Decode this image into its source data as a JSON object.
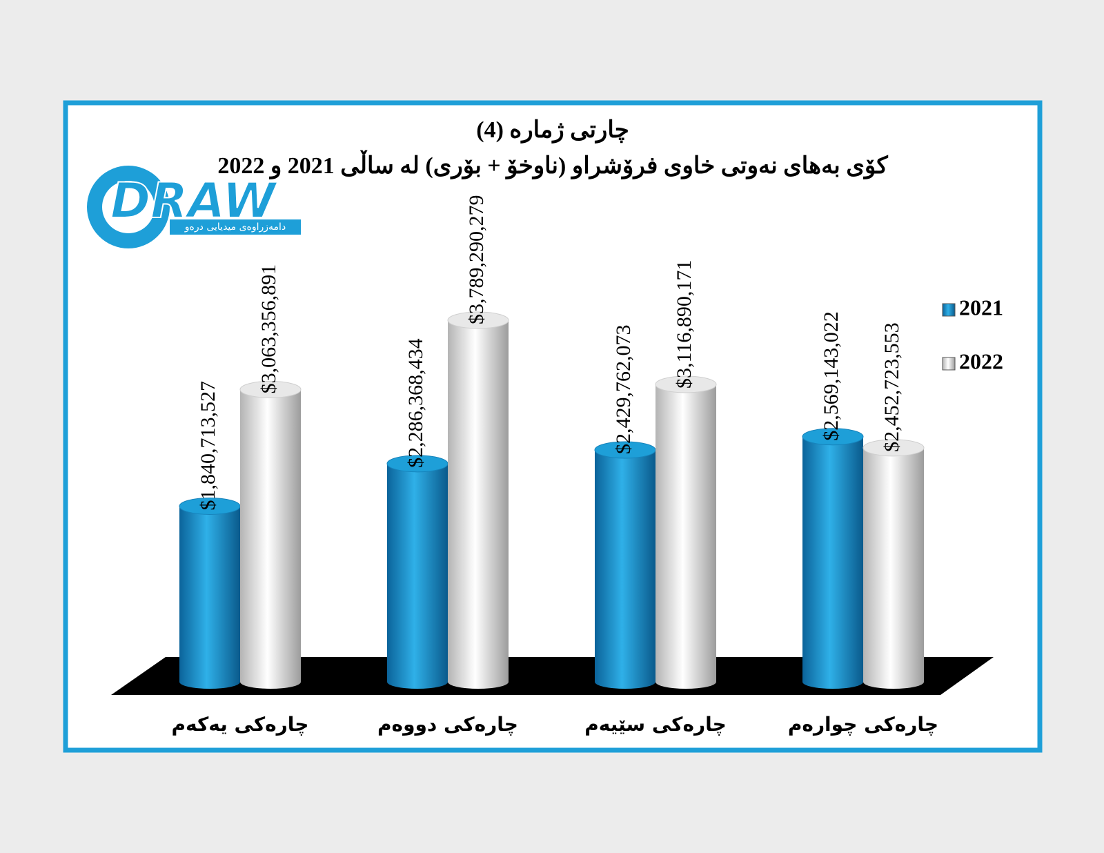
{
  "chart_data": {
    "type": "bar",
    "title": "چارتی ژمارە (4)",
    "subtitle": "کۆی بەهای نەوتی خاوی فرۆشراو (ناوخۆ + بۆری) لە ساڵی 2021 و 2022",
    "logo_text": "DRAW",
    "logo_tagline": "دامەزراوەی میدیایی درەو",
    "categories": [
      "چارەکی یەکەم",
      "چارەکی دووەم",
      "چارەکی سێیەم",
      "چارەکی چوارەم"
    ],
    "series": [
      {
        "name": "2021",
        "color": "#1e9fd8",
        "values": [
          1840713527,
          2286368434,
          2429762073,
          2569143022
        ],
        "value_labels": [
          "$1,840,713,527",
          "$2,286,368,434",
          "$2,429,762,073",
          "$2,569,143,022"
        ]
      },
      {
        "name": "2022",
        "color": "#e8e8e8",
        "values": [
          3063356891,
          3789290279,
          3116890171,
          2452723553
        ],
        "value_labels": [
          "$3,063,356,891",
          "$3,789,290,279",
          "$3,116,890,171",
          "$2,452,723,553"
        ]
      }
    ],
    "legend": "right"
  }
}
